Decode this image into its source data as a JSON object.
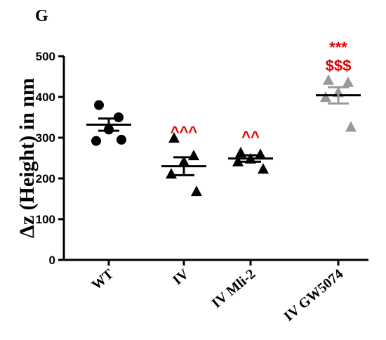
{
  "chart_data": {
    "type": "scatter",
    "panel_label": "G",
    "ylabel": "Δz (Height) in nm",
    "ylim": [
      0,
      500
    ],
    "yticks": [
      0,
      100,
      200,
      300,
      400,
      500
    ],
    "categories": [
      "WT",
      "IV",
      "IV Mli-2",
      "IV GW5074"
    ],
    "grid": false,
    "series": [
      {
        "category": "WT",
        "marker": "circle",
        "color": "#000000",
        "points": [
          380,
          350,
          320,
          292,
          295
        ],
        "mean": 332,
        "sem": 15
      },
      {
        "category": "IV",
        "marker": "triangle",
        "color": "#000000",
        "points": [
          298,
          255,
          240,
          210,
          167
        ],
        "mean": 230,
        "sem": 22
      },
      {
        "category": "IV Mli-2",
        "marker": "triangle",
        "color": "#000000",
        "points": [
          262,
          258,
          247,
          240,
          222
        ],
        "mean": 249,
        "sem": 8
      },
      {
        "category": "IV GW5074",
        "marker": "triangle",
        "color": "#999999",
        "points": [
          440,
          435,
          410,
          398,
          325
        ],
        "mean": 404,
        "sem": 20
      }
    ],
    "annotations": [
      {
        "category": "IV",
        "lines": [
          "^^^"
        ],
        "color": "#e00000"
      },
      {
        "category": "IV Mli-2",
        "lines": [
          "^^"
        ],
        "color": "#e00000"
      },
      {
        "category": "IV GW5074",
        "lines": [
          "***",
          "$$$"
        ],
        "color": "#e00000"
      }
    ]
  }
}
